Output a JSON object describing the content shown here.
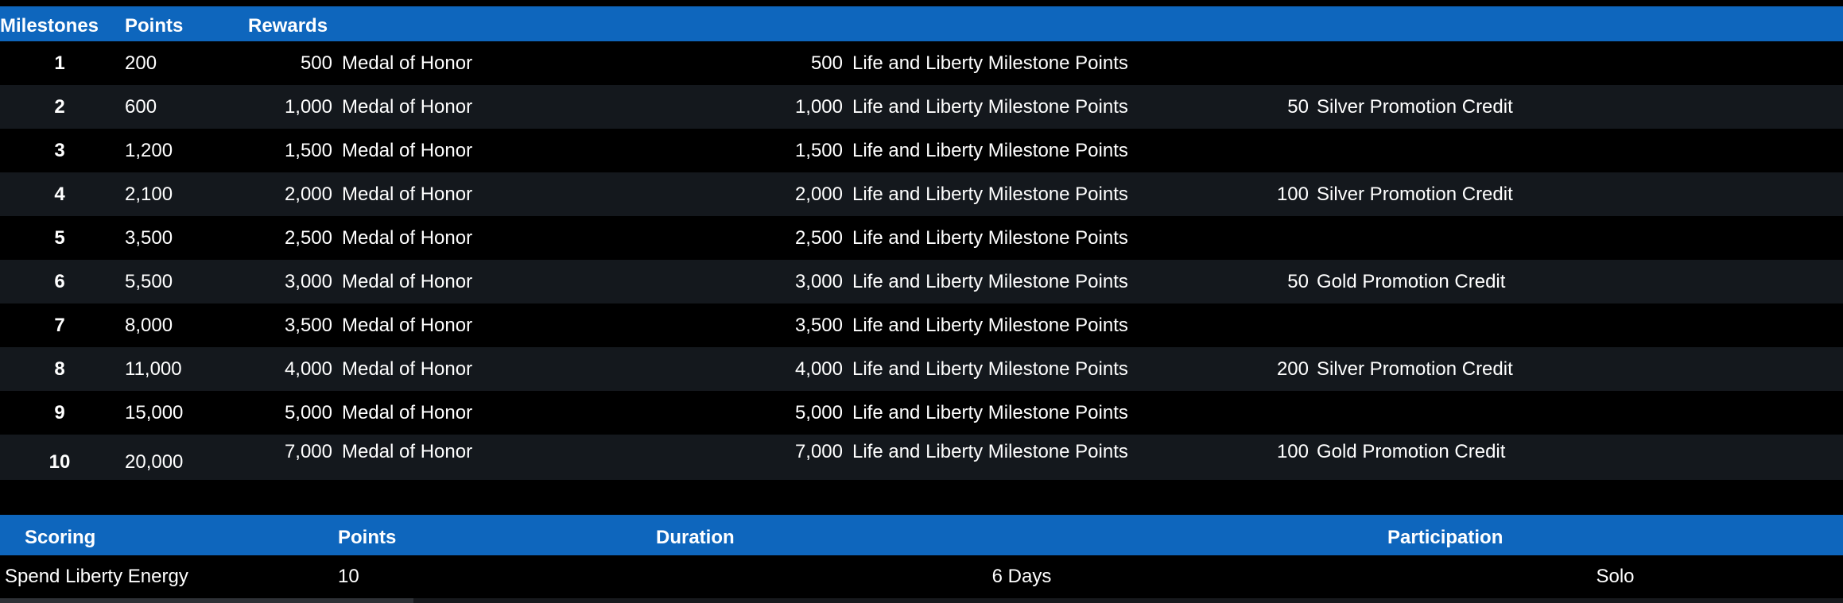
{
  "colors": {
    "header_blue": "#0e66bd",
    "row_black": "#000000",
    "row_alt": "#14181d",
    "text": "#ffffff",
    "scrollbar_track": "#17191d",
    "scrollbar_thumb": "#2e3136"
  },
  "milestones_table": {
    "headers": {
      "milestones": "Milestones",
      "points": "Points",
      "rewards": "Rewards"
    },
    "rows": [
      {
        "milestone": "1",
        "points": "200",
        "r1_qty": "500",
        "r1_name": "Medal of Honor",
        "r2_qty": "500",
        "r2_name": "Life and Liberty Milestone Points",
        "r3_qty": "",
        "r3_name": ""
      },
      {
        "milestone": "2",
        "points": "600",
        "r1_qty": "1,000",
        "r1_name": "Medal of Honor",
        "r2_qty": "1,000",
        "r2_name": "Life and Liberty Milestone Points",
        "r3_qty": "50",
        "r3_name": "Silver Promotion Credit"
      },
      {
        "milestone": "3",
        "points": "1,200",
        "r1_qty": "1,500",
        "r1_name": "Medal of Honor",
        "r2_qty": "1,500",
        "r2_name": "Life and Liberty Milestone Points",
        "r3_qty": "",
        "r3_name": ""
      },
      {
        "milestone": "4",
        "points": "2,100",
        "r1_qty": "2,000",
        "r1_name": "Medal of Honor",
        "r2_qty": "2,000",
        "r2_name": "Life and Liberty Milestone Points",
        "r3_qty": "100",
        "r3_name": "Silver Promotion Credit"
      },
      {
        "milestone": "5",
        "points": "3,500",
        "r1_qty": "2,500",
        "r1_name": "Medal of Honor",
        "r2_qty": "2,500",
        "r2_name": "Life and Liberty Milestone Points",
        "r3_qty": "",
        "r3_name": ""
      },
      {
        "milestone": "6",
        "points": "5,500",
        "r1_qty": "3,000",
        "r1_name": "Medal of Honor",
        "r2_qty": "3,000",
        "r2_name": "Life and Liberty Milestone Points",
        "r3_qty": "50",
        "r3_name": "Gold Promotion Credit"
      },
      {
        "milestone": "7",
        "points": "8,000",
        "r1_qty": "3,500",
        "r1_name": "Medal of Honor",
        "r2_qty": "3,500",
        "r2_name": "Life and Liberty Milestone Points",
        "r3_qty": "",
        "r3_name": ""
      },
      {
        "milestone": "8",
        "points": "11,000",
        "r1_qty": "4,000",
        "r1_name": "Medal of Honor",
        "r2_qty": "4,000",
        "r2_name": "Life and Liberty Milestone Points",
        "r3_qty": "200",
        "r3_name": "Silver Promotion Credit"
      },
      {
        "milestone": "9",
        "points": "15,000",
        "r1_qty": "5,000",
        "r1_name": "Medal of Honor",
        "r2_qty": "5,000",
        "r2_name": "Life and Liberty Milestone Points",
        "r3_qty": "",
        "r3_name": ""
      },
      {
        "milestone": "10",
        "points": "20,000",
        "r1_qty": "7,000",
        "r1_name": "Medal of Honor",
        "r2_qty": "7,000",
        "r2_name": "Life and Liberty Milestone Points",
        "r3_qty": "100",
        "r3_name": "Gold Promotion Credit"
      }
    ]
  },
  "scoring_table": {
    "headers": {
      "scoring": "Scoring",
      "points": "Points",
      "duration": "Duration",
      "participation": "Participation"
    },
    "rows": [
      {
        "scoring": "Spend Liberty Energy",
        "points": "10",
        "duration": "6 Days",
        "participation": "Solo"
      }
    ]
  }
}
